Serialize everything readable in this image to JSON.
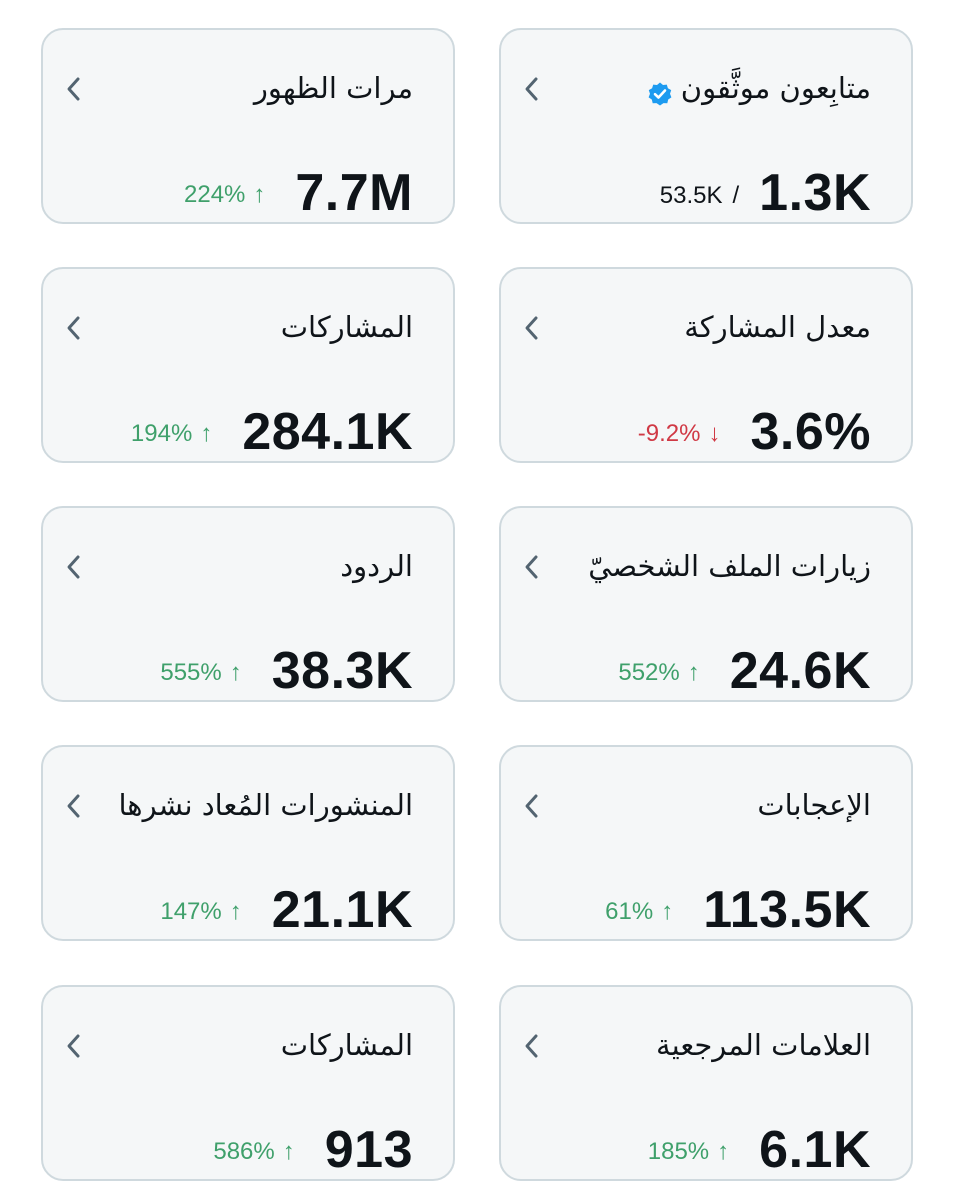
{
  "colors": {
    "card_background": "#f5f7f8",
    "card_border": "#cfd9de",
    "positive": "#3fa06b",
    "negative": "#d03945",
    "verified_badge": "#1d9bf0",
    "chevron": "#536471"
  },
  "cards": [
    {
      "title": "متابِعون موثَّقون",
      "value": "1.3K",
      "sub_value": "53.5K",
      "sub_separator": "/",
      "icon": "verified-badge-icon"
    },
    {
      "title": "مرات الظهور",
      "value": "7.7M",
      "change": "224%",
      "change_arrow": "↑",
      "direction": "up"
    },
    {
      "title": "معدل المشاركة",
      "value": "3.6%",
      "change": "-9.2%",
      "change_arrow": "↓",
      "direction": "down"
    },
    {
      "title": "المشاركات",
      "value": "284.1K",
      "change": "194%",
      "change_arrow": "↑",
      "direction": "up"
    },
    {
      "title": "زيارات الملف الشخصيّ",
      "value": "24.6K",
      "change": "552%",
      "change_arrow": "↑",
      "direction": "up"
    },
    {
      "title": "الردود",
      "value": "38.3K",
      "change": "555%",
      "change_arrow": "↑",
      "direction": "up"
    },
    {
      "title": "الإعجابات",
      "value": "113.5K",
      "change": "61%",
      "change_arrow": "↑",
      "direction": "up"
    },
    {
      "title": "المنشورات المُعاد نشرها",
      "value": "21.1K",
      "change": "147%",
      "change_arrow": "↑",
      "direction": "up"
    },
    {
      "title": "العلامات المرجعية",
      "value": "6.1K",
      "change": "185%",
      "change_arrow": "↑",
      "direction": "up"
    },
    {
      "title": "المشاركات",
      "value": "913",
      "change": "586%",
      "change_arrow": "↑",
      "direction": "up"
    }
  ]
}
